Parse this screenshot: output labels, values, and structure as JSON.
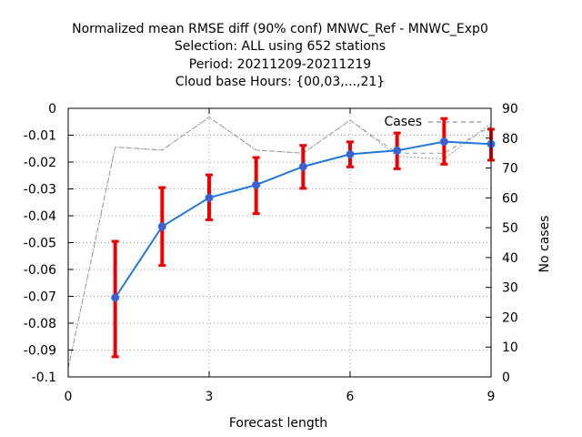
{
  "chart_data": {
    "type": "line",
    "title_lines": [
      "Normalized mean RMSE diff (90% conf) MNWC_Ref - MNWC_Exp0",
      "Selection: ALL using    652 stations",
      "Period: 20211209-20211219",
      "Cloud base   Hours: {00,03,...,21}"
    ],
    "xlabel": "Forecast length",
    "ylabel": "",
    "y2label": "No cases",
    "xlim": [
      0,
      9
    ],
    "ylim": [
      -0.1,
      0
    ],
    "y2lim": [
      0,
      90
    ],
    "x_ticks": [
      "0",
      "3",
      "6",
      "9"
    ],
    "y_ticks": [
      "0",
      "-0.01",
      "-0.02",
      "-0.03",
      "-0.04",
      "-0.05",
      "-0.06",
      "-0.07",
      "-0.08",
      "-0.09",
      "-0.1"
    ],
    "y2_ticks": [
      "90",
      "80",
      "70",
      "60",
      "50",
      "40",
      "30",
      "20",
      "10",
      "0"
    ],
    "grid": true,
    "series": [
      {
        "color": "#1e78dc",
        "marker_color": "#4a5ad0",
        "error_color": "#ee0000",
        "x": [
          1,
          2,
          3,
          4,
          5,
          6,
          7,
          8,
          9
        ],
        "y": [
          -0.0705,
          -0.044,
          -0.0333,
          -0.0285,
          -0.0217,
          -0.0171,
          -0.0157,
          -0.0124,
          -0.0133
        ],
        "low": [
          -0.0925,
          -0.0585,
          -0.0415,
          -0.0392,
          -0.0298,
          -0.0218,
          -0.0225,
          -0.0208,
          -0.0193
        ],
        "high": [
          -0.0495,
          -0.0295,
          -0.0248,
          -0.0183,
          -0.0138,
          -0.0125,
          -0.0092,
          -0.0038,
          -0.0078
        ]
      }
    ],
    "cases": {
      "name": "Cases",
      "color": "#999999",
      "legend_color": "#777777",
      "dotted": {
        "x": [
          0,
          1,
          2,
          3,
          4,
          5,
          6,
          7,
          8,
          9
        ],
        "y": [
          3,
          77,
          76,
          87,
          76,
          75,
          86,
          74,
          73,
          85
        ]
      },
      "dashed": {
        "x": [
          0,
          1,
          2,
          3,
          4,
          5,
          6,
          7,
          8,
          9
        ],
        "y": [
          3,
          77,
          76,
          87,
          76,
          75,
          86,
          75,
          75,
          84
        ]
      }
    },
    "legend": {
      "label": "Cases",
      "position": "top-right"
    }
  }
}
